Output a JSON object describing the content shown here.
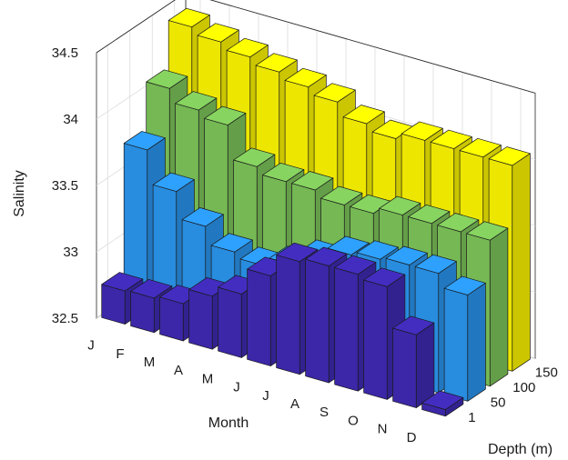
{
  "chart_data": {
    "type": "bar3",
    "title": "",
    "xlabel": "Month",
    "ylabel": "Depth (m)",
    "zlabel": "Salinity",
    "categories": [
      "J",
      "F",
      "M",
      "A",
      "M",
      "J",
      "J",
      "A",
      "S",
      "O",
      "N",
      "D"
    ],
    "depth_ticks": [
      "1",
      "50",
      "100",
      "150"
    ],
    "zlim": [
      32.5,
      34.5
    ],
    "zticks": [
      32.5,
      33,
      33.5,
      34,
      34.5
    ],
    "grid": true,
    "series": [
      {
        "name": "1",
        "color": "#3f2ab4",
        "values": [
          32.75,
          32.76,
          32.78,
          32.9,
          32.98,
          33.18,
          33.35,
          33.38,
          33.38,
          33.35,
          33.05,
          32.55
        ]
      },
      {
        "name": "50",
        "color": "#2b96f0",
        "values": [
          33.7,
          33.45,
          33.25,
          33.12,
          33.08,
          33.15,
          33.26,
          33.35,
          33.38,
          33.4,
          33.4,
          33.3
        ]
      },
      {
        "name": "100",
        "color": "#7ec65a",
        "values": [
          34.05,
          33.95,
          33.9,
          33.65,
          33.6,
          33.6,
          33.55,
          33.55,
          33.6,
          33.6,
          33.6,
          33.6
        ]
      },
      {
        "name": "150",
        "color": "#fff700",
        "values": [
          34.4,
          34.35,
          34.3,
          34.25,
          34.2,
          34.15,
          34.05,
          34.0,
          34.05,
          34.05,
          34.05,
          34.05
        ]
      }
    ]
  }
}
